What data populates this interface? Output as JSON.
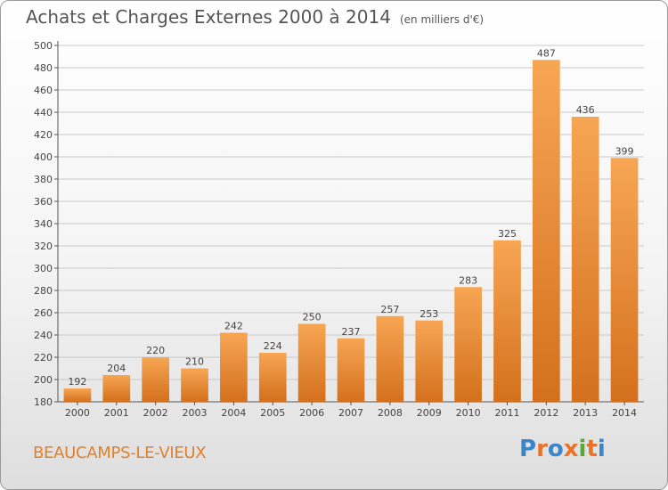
{
  "title": "Achats et Charges Externes 2000 à 2014",
  "subtitle": "(en milliers d'€)",
  "commune": "BEAUCAMPS-LE-VIEUX",
  "logo": {
    "letters": [
      "P",
      "r",
      "o",
      "x",
      "i",
      "t",
      "i"
    ],
    "colors": [
      "#3a86c8",
      "#e8742a",
      "#3a86c8",
      "#e8742a",
      "#59a83b",
      "#e8742a",
      "#3a86c8"
    ]
  },
  "colors": {
    "bar_light": "#f7a654",
    "bar_dark": "#d4701d",
    "grid": "#c9c9c9"
  },
  "chart_data": {
    "type": "bar",
    "categories": [
      "2000",
      "2001",
      "2002",
      "2003",
      "2004",
      "2005",
      "2006",
      "2007",
      "2008",
      "2009",
      "2010",
      "2011",
      "2012",
      "2013",
      "2014"
    ],
    "values": [
      192,
      204,
      220,
      210,
      242,
      224,
      250,
      237,
      257,
      253,
      283,
      325,
      487,
      436,
      399
    ],
    "yticks": [
      180,
      200,
      220,
      240,
      260,
      280,
      300,
      320,
      340,
      360,
      380,
      400,
      420,
      440,
      460,
      480,
      500
    ],
    "ylim": [
      180,
      500
    ],
    "grid": true,
    "data_labels": true
  }
}
